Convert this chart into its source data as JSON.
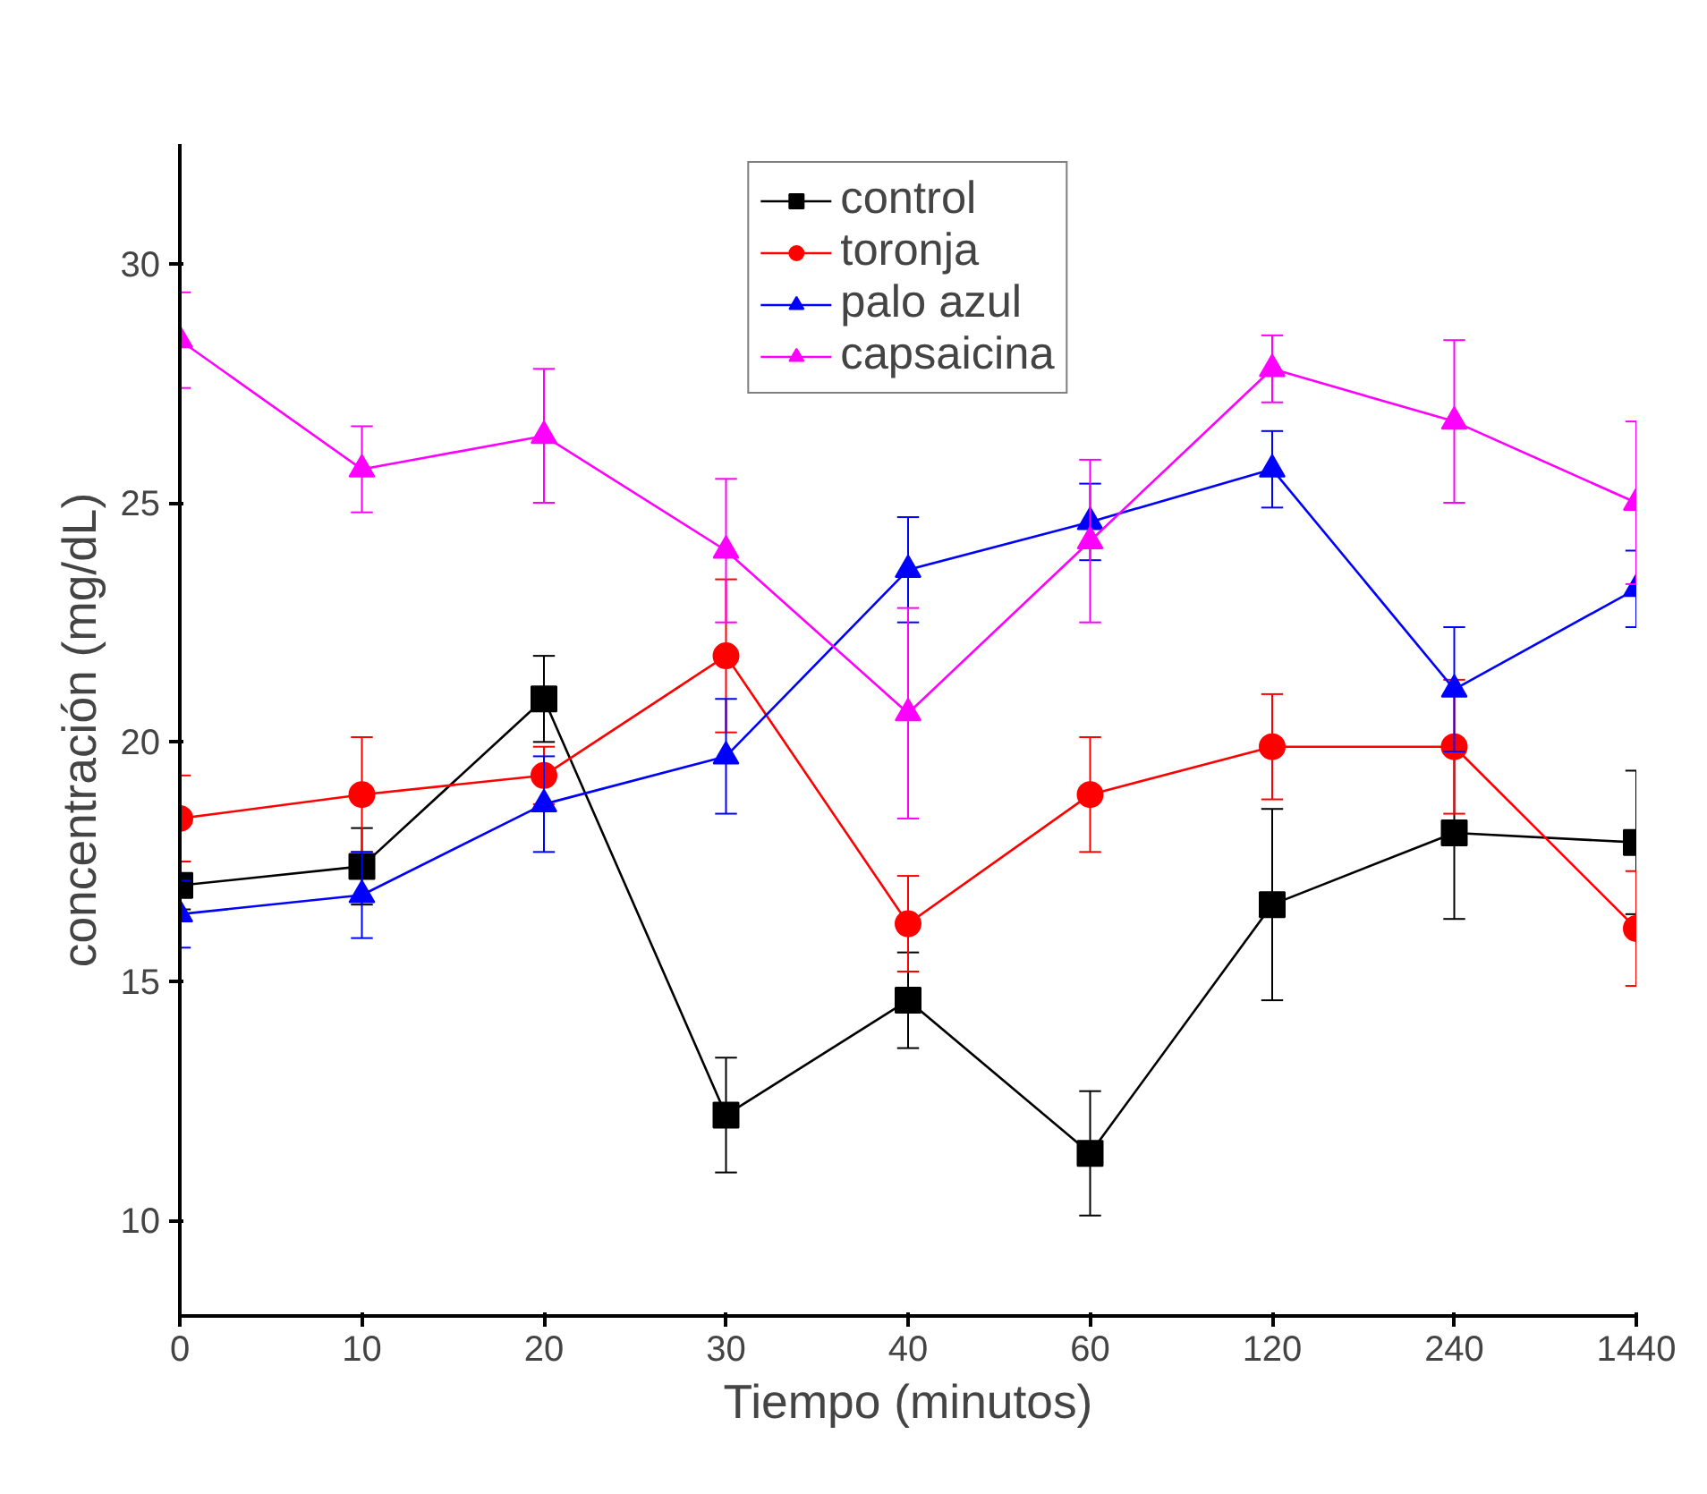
{
  "chart_data": {
    "type": "line",
    "xlabel": "Tiempo (minutos)",
    "ylabel": "concentración (mg/dL)",
    "categories": [
      "0",
      "10",
      "20",
      "30",
      "40",
      "60",
      "120",
      "240",
      "1440"
    ],
    "ylim": [
      8,
      32.5
    ],
    "yticks": [
      10,
      15,
      20,
      25,
      30
    ],
    "grid": false,
    "legend": "top",
    "line_style": "solid",
    "series": [
      {
        "name": "control",
        "color": "#000000",
        "marker": "square",
        "values": [
          17.0,
          17.4,
          20.9,
          12.2,
          14.6,
          11.4,
          16.6,
          18.1,
          17.9
        ],
        "errors": [
          0.5,
          0.8,
          0.9,
          1.2,
          1.0,
          1.3,
          2.0,
          1.8,
          1.5
        ]
      },
      {
        "name": "toronja",
        "color": "#ff0000",
        "marker": "circle",
        "values": [
          18.4,
          18.9,
          19.3,
          21.8,
          16.2,
          18.9,
          19.9,
          19.9,
          16.1
        ],
        "errors": [
          0.9,
          1.2,
          0.6,
          1.6,
          1.0,
          1.2,
          1.1,
          1.4,
          1.2
        ]
      },
      {
        "name": "palo azul",
        "color": "#0000ff",
        "marker": "triangle",
        "values": [
          16.4,
          16.8,
          18.7,
          19.7,
          23.6,
          24.6,
          25.7,
          21.1,
          23.2
        ],
        "errors": [
          0.7,
          0.9,
          1.0,
          1.2,
          1.1,
          0.8,
          0.8,
          1.3,
          0.8
        ]
      },
      {
        "name": "capsaicina",
        "color": "#ff00ff",
        "marker": "triangle",
        "values": [
          28.4,
          25.7,
          26.4,
          24.0,
          20.6,
          24.2,
          27.8,
          26.7,
          25.0
        ],
        "errors": [
          1.0,
          0.9,
          1.4,
          1.5,
          2.2,
          1.7,
          0.7,
          1.7,
          1.7
        ]
      }
    ]
  }
}
